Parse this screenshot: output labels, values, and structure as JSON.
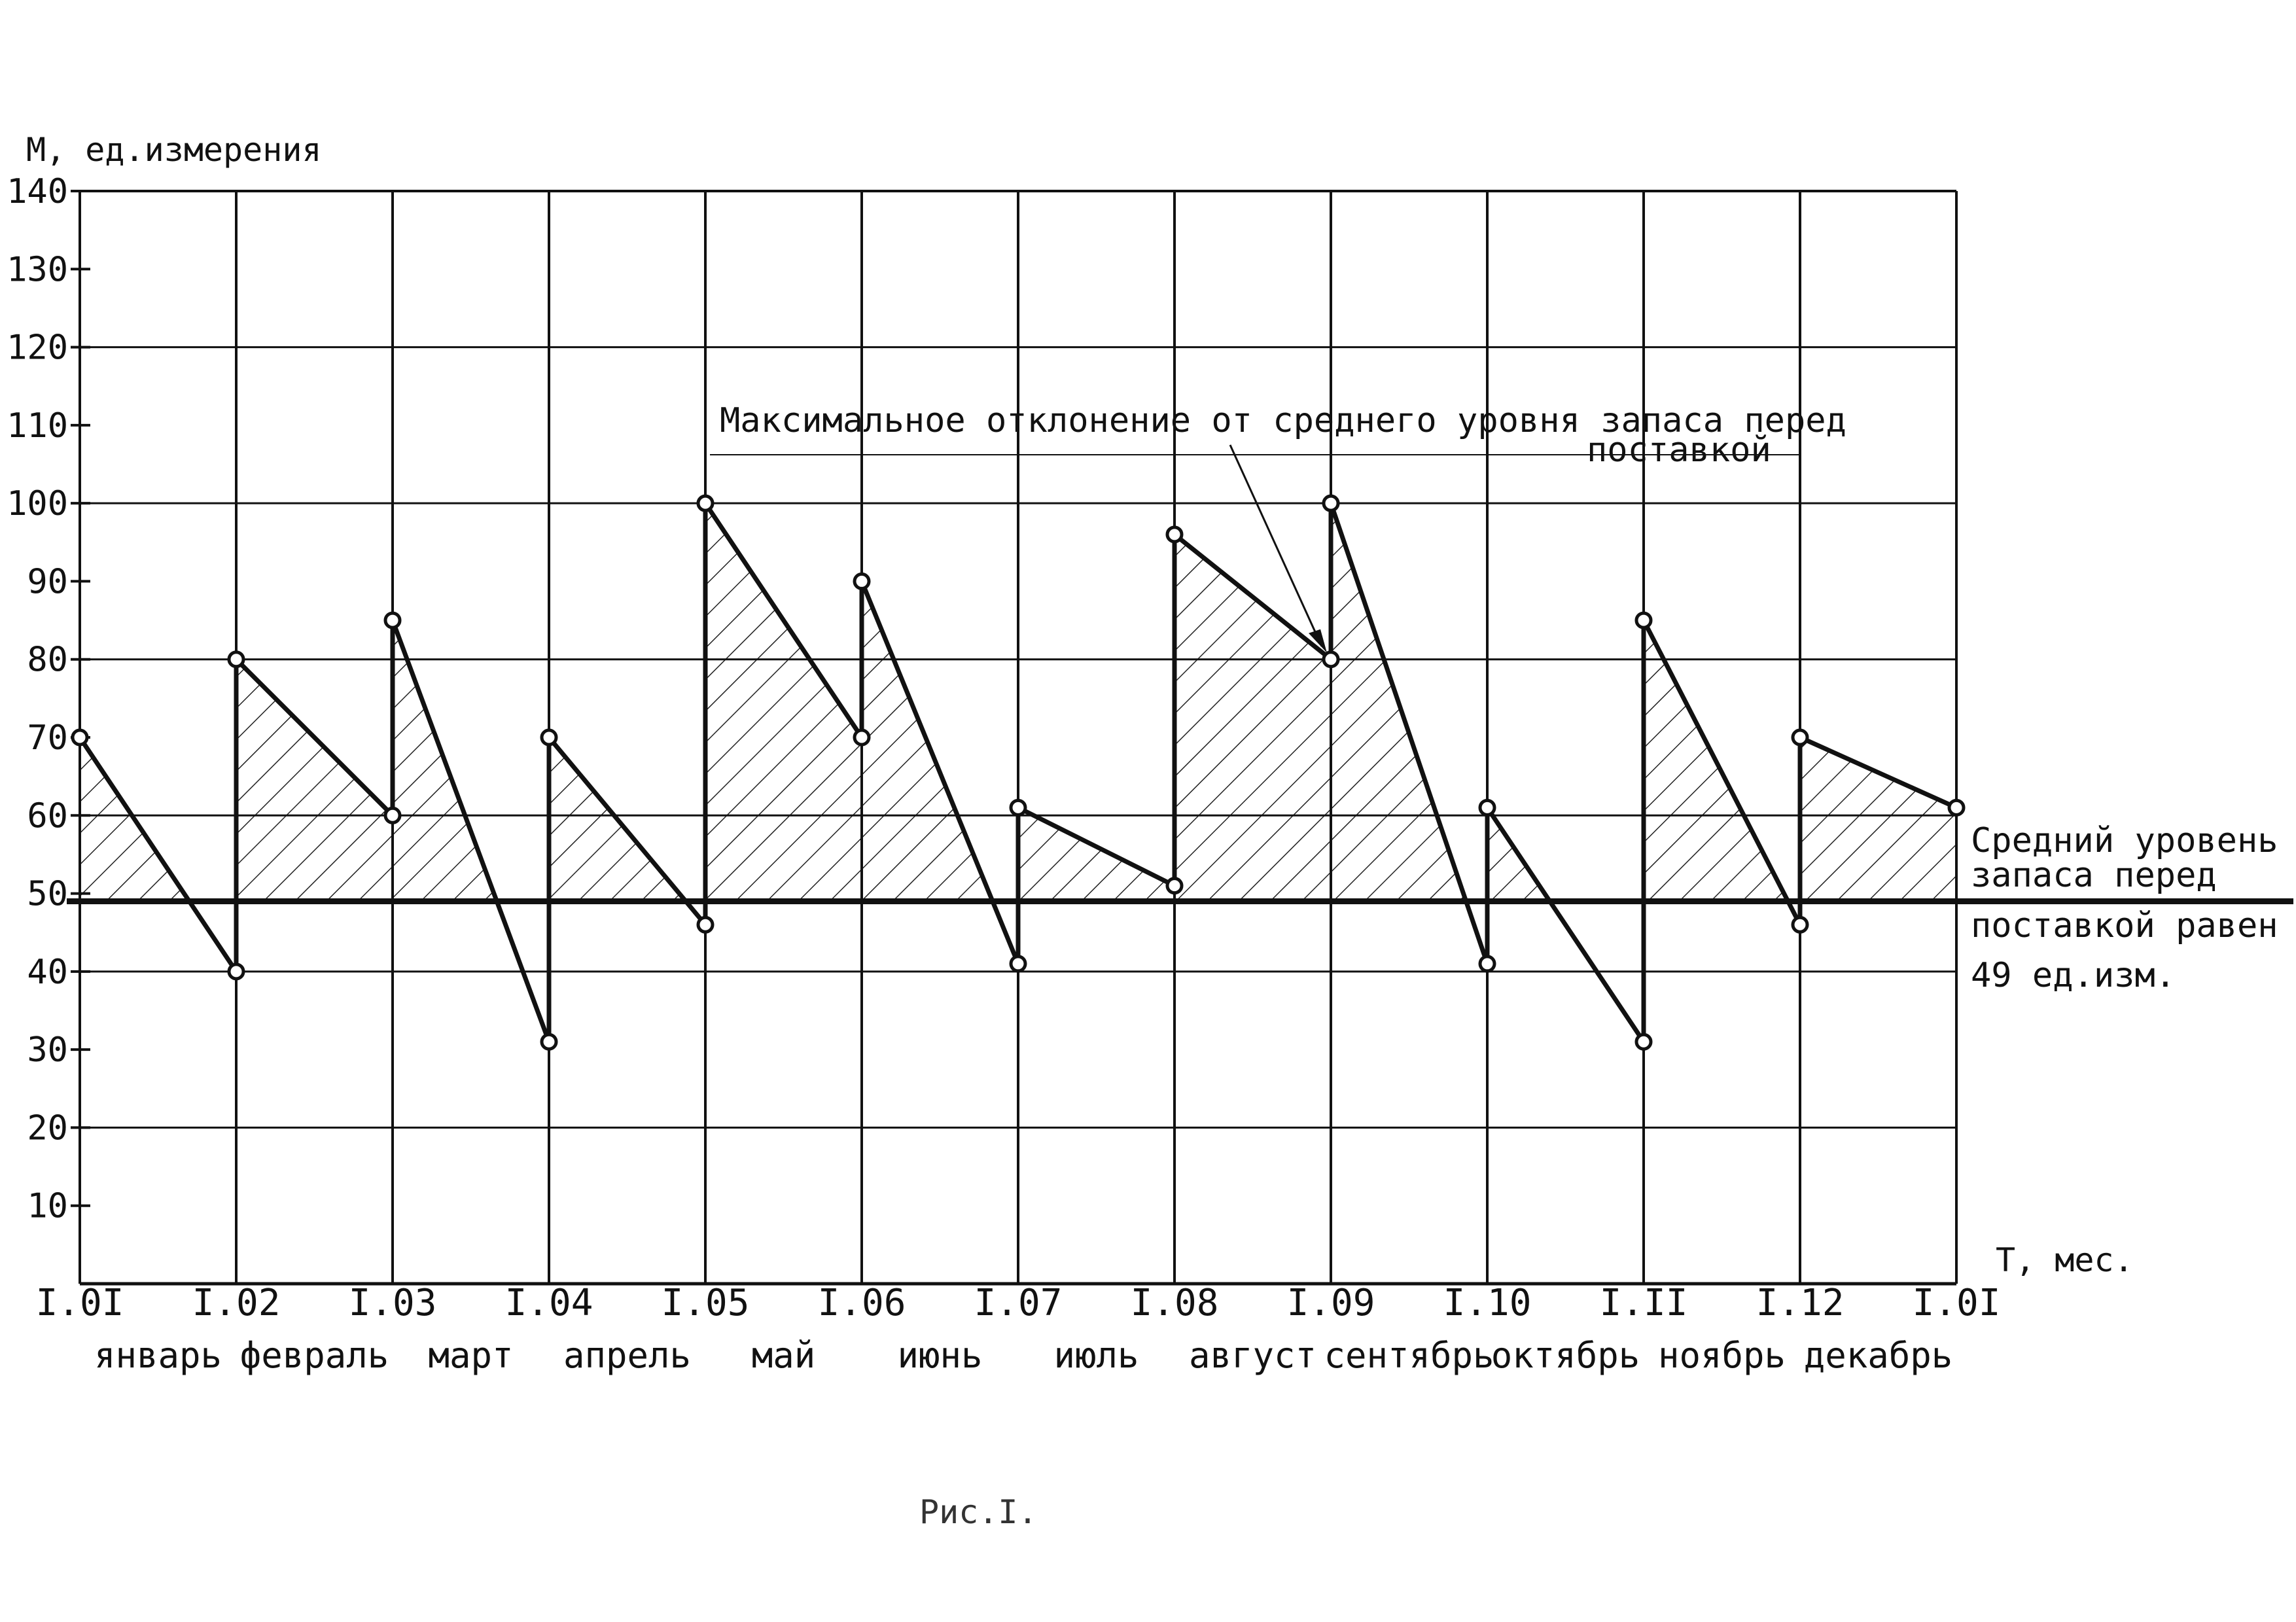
{
  "chart_data": {
    "type": "line",
    "ylabel": "М, ед.измерения",
    "xlabel": "Т, мес.",
    "ylim": [
      0,
      140
    ],
    "yticks": [
      "140",
      "130",
      "120",
      "110",
      "100",
      "90",
      "80",
      "70",
      "60",
      "50",
      "40",
      "30",
      "20",
      "10"
    ],
    "ytick_values": [
      140,
      130,
      120,
      110,
      100,
      90,
      80,
      70,
      60,
      50,
      40,
      30,
      20,
      10
    ],
    "xticks": [
      "I.0I",
      "I.02",
      "I.03",
      "I.04",
      "I.05",
      "I.06",
      "I.07",
      "I.08",
      "I.09",
      "I.10",
      "I.II",
      "I.12",
      "I.0I"
    ],
    "months": [
      "январь",
      "февраль",
      "март",
      "апрель",
      "май",
      "июнь",
      "июль",
      "август",
      "сентябрь",
      "октябрь",
      "ноябрь",
      "декабрь"
    ],
    "grid": true,
    "series": [
      {
        "points": [
          [
            0,
            70
          ],
          [
            1,
            40
          ],
          [
            1,
            80
          ],
          [
            2,
            60
          ],
          [
            2,
            85
          ],
          [
            3,
            31
          ],
          [
            3,
            70
          ],
          [
            4,
            46
          ],
          [
            4,
            100
          ],
          [
            5,
            70
          ],
          [
            5,
            90
          ],
          [
            6,
            41
          ],
          [
            6,
            61
          ],
          [
            7,
            51
          ],
          [
            7,
            96
          ],
          [
            8,
            80
          ],
          [
            8,
            100
          ],
          [
            9,
            41
          ],
          [
            9,
            61
          ],
          [
            10,
            31
          ],
          [
            10,
            85
          ],
          [
            11,
            46
          ],
          [
            11,
            70
          ],
          [
            12,
            61
          ]
        ]
      }
    ],
    "mean_level": {
      "value": 49,
      "label_lines": [
        "Средний уровень",
        "запаса перед",
        "поставкой равен",
        "49 ед.изм."
      ]
    },
    "annotation": {
      "lines": [
        "Максимальное отклонение от среднего уровня запаса перед",
        "поставкой"
      ],
      "target": [
        8,
        80
      ]
    },
    "caption": "Рис.I."
  }
}
